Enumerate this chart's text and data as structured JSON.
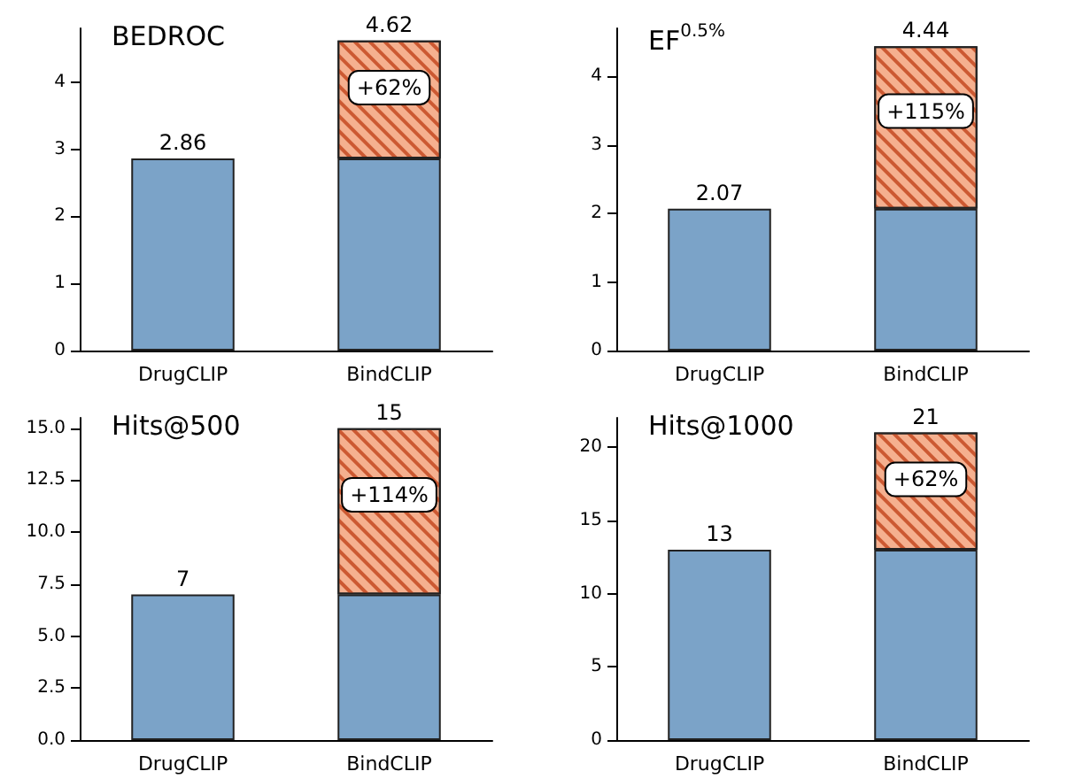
{
  "chart_data": [
    {
      "type": "bar",
      "title": "BEDROC",
      "categories": [
        "DrugCLIP",
        "BindCLIP"
      ],
      "stacked": true,
      "ylim": [
        0,
        4.8
      ],
      "yticks": [
        0,
        1,
        2,
        3,
        4
      ],
      "grid": false,
      "series": [
        {
          "color": "#7ba3c8",
          "values": [
            2.86,
            2.86
          ]
        },
        {
          "color": "#f5b08f",
          "values": [
            null,
            1.76
          ]
        }
      ],
      "totals": [
        "2.86",
        "4.62"
      ],
      "annotations": [
        "+62%"
      ]
    },
    {
      "type": "bar",
      "title": "EF$^{0.5%}$",
      "categories": [
        "DrugCLIP",
        "BindCLIP"
      ],
      "stacked": true,
      "ylim": [
        0,
        4.7
      ],
      "yticks": [
        0,
        1,
        2,
        3,
        4
      ],
      "grid": false,
      "series": [
        {
          "color": "#7ba3c8",
          "values": [
            2.07,
            2.07
          ]
        },
        {
          "color": "#f5b08f",
          "values": [
            null,
            2.37
          ]
        }
      ],
      "totals": [
        "2.07",
        "4.44"
      ],
      "annotations": [
        "+115%"
      ]
    },
    {
      "type": "bar",
      "title": "Hits@500",
      "categories": [
        "DrugCLIP",
        "BindCLIP"
      ],
      "stacked": true,
      "ylim": [
        0,
        15.5
      ],
      "yticks": [
        {
          "value": 0,
          "label": "0.0"
        },
        {
          "value": 2.5,
          "label": "2.5"
        },
        {
          "value": 5,
          "label": "5.0"
        },
        {
          "value": 7.5,
          "label": "7.5"
        },
        {
          "value": 10,
          "label": "10.0"
        },
        {
          "value": 12.5,
          "label": "12.5"
        },
        {
          "value": 15,
          "label": "15.0"
        }
      ],
      "grid": false,
      "series": [
        {
          "color": "#7ba3c8",
          "values": [
            7,
            7
          ]
        },
        {
          "color": "#f5b08f",
          "values": [
            null,
            8
          ]
        }
      ],
      "totals": [
        "7",
        "15"
      ],
      "annotations": [
        "+114%"
      ]
    },
    {
      "type": "bar",
      "title": "Hits@1000",
      "categories": [
        "DrugCLIP",
        "BindCLIP"
      ],
      "stacked": true,
      "ylim": [
        0,
        22
      ],
      "yticks": [
        0,
        5,
        10,
        15,
        20
      ],
      "grid": false,
      "series": [
        {
          "color": "#7ba3c8",
          "values": [
            13,
            13
          ]
        },
        {
          "color": "#f5b08f",
          "values": [
            null,
            8
          ]
        }
      ],
      "totals": [
        "13",
        "21"
      ],
      "annotations": [
        "+62%"
      ]
    }
  ]
}
